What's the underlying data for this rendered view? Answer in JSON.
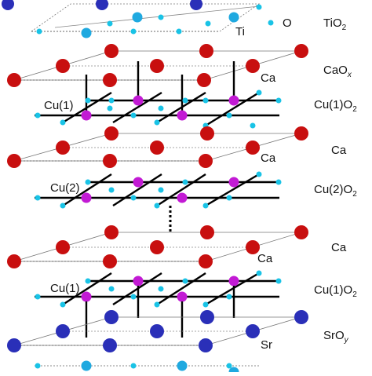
{
  "colors": {
    "oxygen": "#19c3e6",
    "calcium": "#c80f0f",
    "copper": "#c21ad4",
    "strontium": "#2a2fb8",
    "titanium": "#1fa9e0",
    "bond": "#000000",
    "frame": "#6a6a6a"
  },
  "atom_labels": {
    "oxygen": "O",
    "titanium": "Ti",
    "calcium_1": "Ca",
    "calcium_2": "Ca",
    "calcium_3": "Ca",
    "copper_1_top": "Cu(1)",
    "copper_2": "Cu(2)",
    "copper_1_bottom": "Cu(1)",
    "strontium": "Sr"
  },
  "layer_labels": [
    {
      "name": "TiO",
      "sub": "2",
      "italic_sub": false
    },
    {
      "name": "CaO",
      "sub": "x",
      "italic_sub": true
    },
    {
      "name": "Cu(1)O",
      "sub": "2",
      "italic_sub": false
    },
    {
      "name": "Ca",
      "sub": "",
      "italic_sub": false
    },
    {
      "name": "Cu(2)O",
      "sub": "2",
      "italic_sub": false
    },
    {
      "name": "Ca",
      "sub": "",
      "italic_sub": false
    },
    {
      "name": "Cu(1)O",
      "sub": "2",
      "italic_sub": false
    },
    {
      "name": "SrO",
      "sub": "y",
      "italic_sub": true
    }
  ]
}
